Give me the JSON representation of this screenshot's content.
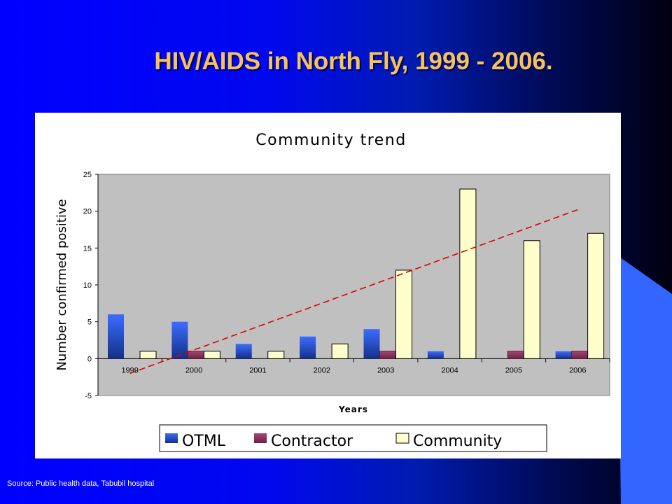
{
  "slide": {
    "title": "HIV/AIDS in North Fly, 1999 - 2006.",
    "source": "Source: Public health data, Tabubil hospital"
  },
  "colors": {
    "otml": "#2f55e0",
    "contractor": "#8a2f5c",
    "community": "#ffffcc",
    "plot_bg": "#c0c0c0",
    "trend": "#e00000"
  },
  "chart_data": {
    "type": "bar",
    "title": "Community trend",
    "xlabel": "Years",
    "ylabel": "Number confirmed positive",
    "categories": [
      "1999",
      "2000",
      "2001",
      "2002",
      "2003",
      "2004",
      "2005",
      "2006"
    ],
    "ylim": [
      -5,
      25
    ],
    "yticks": [
      -5,
      0,
      5,
      10,
      15,
      20,
      25
    ],
    "grid": false,
    "legend_position": "bottom",
    "series": [
      {
        "name": "OTML",
        "values": [
          6,
          5,
          2,
          3,
          4,
          1,
          0,
          1
        ]
      },
      {
        "name": "Contractor",
        "values": [
          0,
          1,
          0,
          0,
          1,
          0,
          1,
          1
        ]
      },
      {
        "name": "Community",
        "values": [
          1,
          1,
          1,
          2,
          12,
          23,
          16,
          17
        ]
      }
    ],
    "trendline": {
      "series": "Community",
      "style": "dashed",
      "start": -2,
      "end": 20.2
    }
  }
}
